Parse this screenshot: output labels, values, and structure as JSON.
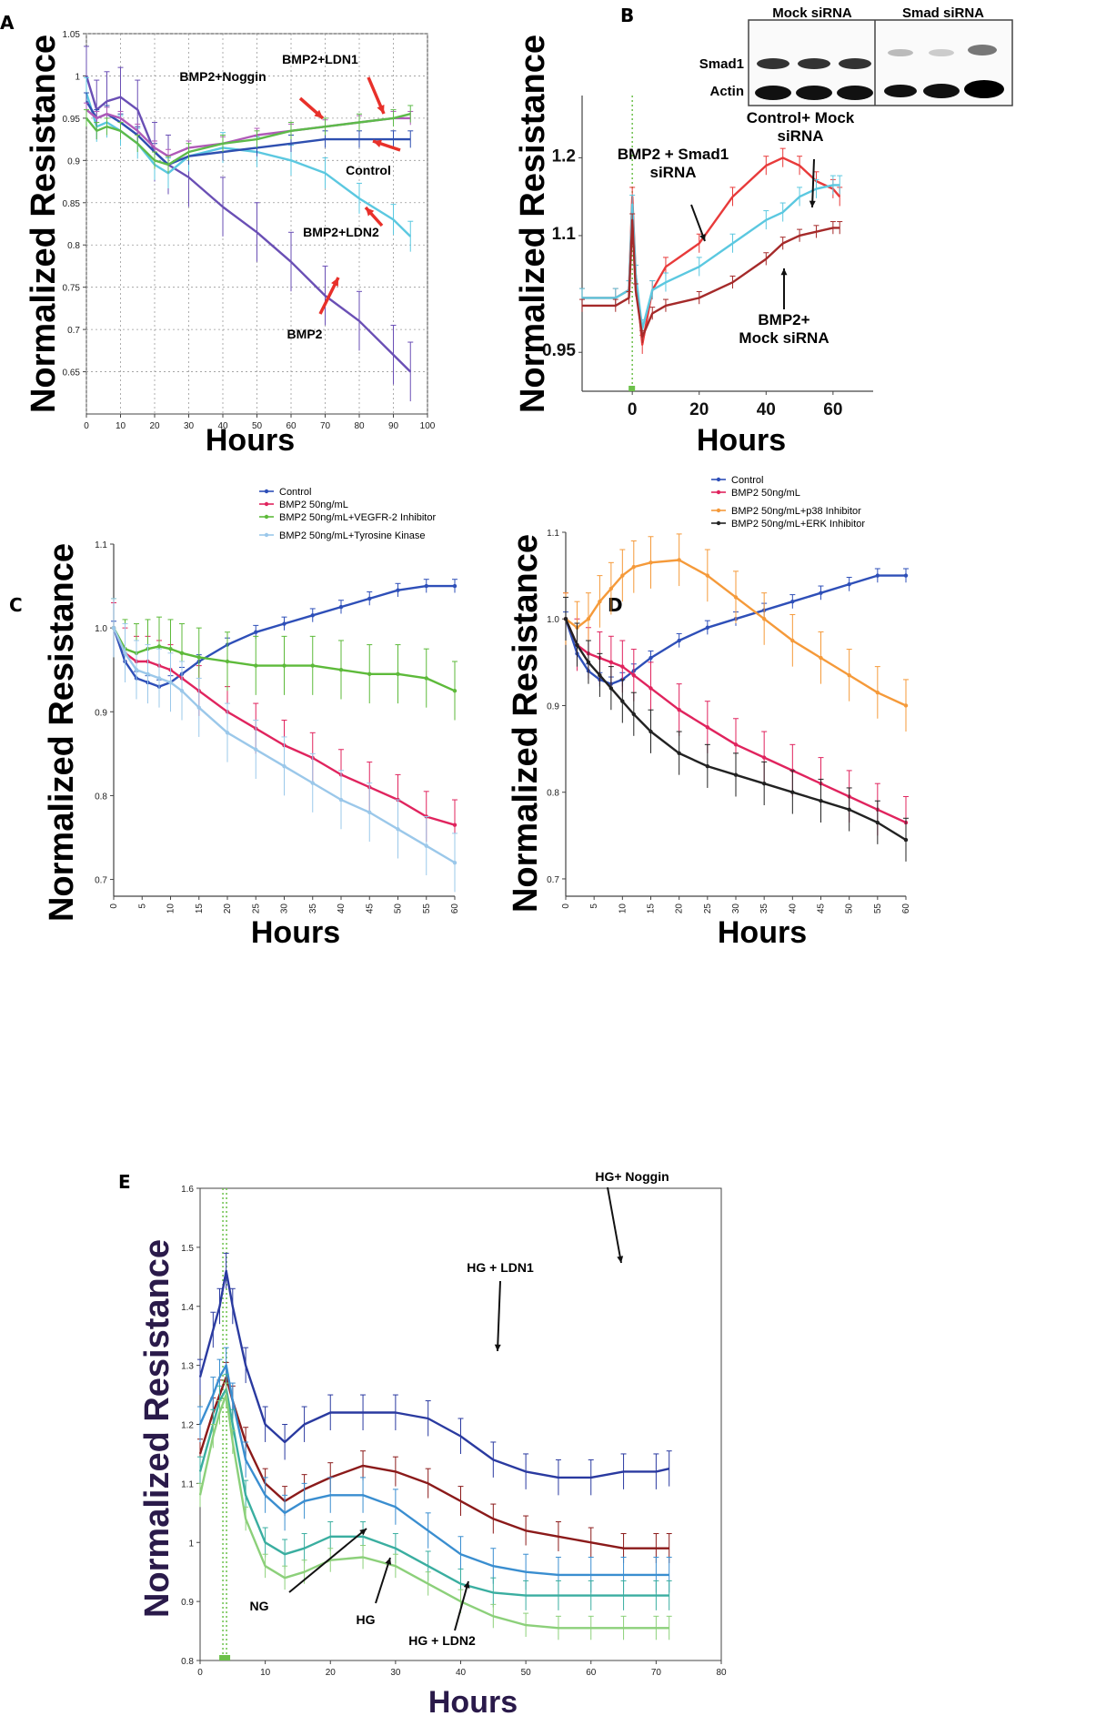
{
  "figure": {
    "panel_letters": [
      "A",
      "B",
      "C",
      "D",
      "E"
    ],
    "blot": {
      "mock_label": "Mock siRNA",
      "smad_label": "Smad siRNA",
      "row1_label": "Smad1",
      "row2_label": "Actin"
    }
  },
  "chart_data": [
    {
      "panel": "A",
      "type": "line",
      "xlabel": "Hours",
      "ylabel": "Normalized Resistance",
      "xlim": [
        0,
        100
      ],
      "ylim": [
        0.6,
        1.05
      ],
      "xticks": [
        0,
        10,
        20,
        30,
        40,
        50,
        60,
        70,
        80,
        90,
        100
      ],
      "yticks": [
        0.65,
        0.7,
        0.75,
        0.8,
        0.85,
        0.9,
        0.95,
        1,
        1.05
      ],
      "ytick_labels": [
        "0.65",
        "0.7",
        "0.75",
        "0.8",
        "0.85",
        "0.9",
        "0.95",
        "1",
        "1.05"
      ],
      "grid": true,
      "series": [
        {
          "name": "BMP2",
          "color": "#6a4fb5",
          "err": 0.035,
          "x": [
            0,
            3,
            6,
            10,
            15,
            20,
            24,
            30,
            40,
            50,
            60,
            70,
            80,
            90,
            95
          ],
          "y": [
            1.0,
            0.96,
            0.97,
            0.975,
            0.96,
            0.91,
            0.895,
            0.88,
            0.845,
            0.815,
            0.78,
            0.74,
            0.71,
            0.67,
            0.65
          ]
        },
        {
          "name": "BMP2+LDN2",
          "color": "#5bc8e0",
          "err": 0.018,
          "x": [
            0,
            3,
            6,
            10,
            15,
            20,
            24,
            30,
            40,
            50,
            60,
            70,
            80,
            90,
            95
          ],
          "y": [
            0.98,
            0.94,
            0.945,
            0.935,
            0.92,
            0.895,
            0.885,
            0.905,
            0.915,
            0.91,
            0.9,
            0.885,
            0.855,
            0.83,
            0.81
          ]
        },
        {
          "name": "Control",
          "color": "#2e4fb0",
          "err": 0.01,
          "x": [
            0,
            3,
            6,
            10,
            15,
            20,
            24,
            30,
            40,
            50,
            60,
            70,
            80,
            90,
            95
          ],
          "y": [
            0.97,
            0.95,
            0.955,
            0.945,
            0.93,
            0.91,
            0.895,
            0.905,
            0.91,
            0.915,
            0.92,
            0.925,
            0.925,
            0.925,
            0.925
          ]
        },
        {
          "name": "BMP2+Noggin",
          "color": "#b05ab8",
          "err": 0.008,
          "x": [
            0,
            3,
            6,
            10,
            15,
            20,
            24,
            30,
            40,
            50,
            60,
            70,
            80,
            90,
            95
          ],
          "y": [
            0.96,
            0.95,
            0.955,
            0.95,
            0.935,
            0.915,
            0.905,
            0.915,
            0.92,
            0.93,
            0.935,
            0.94,
            0.945,
            0.95,
            0.95
          ]
        },
        {
          "name": "BMP2+LDN1",
          "color": "#5dba4a",
          "err": 0.01,
          "x": [
            0,
            3,
            6,
            10,
            15,
            20,
            24,
            30,
            40,
            50,
            60,
            70,
            80,
            90,
            95
          ],
          "y": [
            0.95,
            0.935,
            0.94,
            0.935,
            0.92,
            0.9,
            0.895,
            0.91,
            0.92,
            0.925,
            0.935,
            0.94,
            0.945,
            0.95,
            0.955
          ]
        }
      ],
      "annotations": [
        "BMP2+Noggin",
        "BMP2+LDN1",
        "Control",
        "BMP2+LDN2",
        "BMP2"
      ]
    },
    {
      "panel": "B",
      "type": "line",
      "xlabel": "Hours",
      "ylabel": "Normalized Resistance",
      "xlim": [
        -15,
        72
      ],
      "ylim": [
        0.9,
        1.28
      ],
      "xticks": [
        0,
        20,
        40,
        60
      ],
      "yticks": [
        0.95,
        1.1,
        1.2
      ],
      "ytick_labels": [
        "0.95",
        "1.1",
        "1.2"
      ],
      "series": [
        {
          "name": "BMP2 + Smad1 siRNA",
          "color": "#e83a3a",
          "err": 0.012,
          "x": [
            -15,
            -5,
            -1,
            0,
            1,
            3,
            6,
            10,
            20,
            30,
            40,
            45,
            50,
            55,
            60,
            62
          ],
          "y": [
            1.02,
            1.02,
            1.03,
            1.15,
            1.05,
            0.96,
            1.03,
            1.06,
            1.09,
            1.15,
            1.19,
            1.2,
            1.19,
            1.17,
            1.16,
            1.15
          ]
        },
        {
          "name": "Control+ Mock siRNA",
          "color": "#5bc8e0",
          "err": 0.012,
          "x": [
            -15,
            -5,
            -1,
            0,
            1,
            3,
            6,
            10,
            20,
            30,
            40,
            45,
            50,
            55,
            60,
            62
          ],
          "y": [
            1.02,
            1.02,
            1.03,
            1.14,
            1.05,
            0.98,
            1.03,
            1.04,
            1.06,
            1.09,
            1.12,
            1.13,
            1.15,
            1.16,
            1.165,
            1.165
          ]
        },
        {
          "name": "BMP2+ Mock siRNA",
          "color": "#a52a2a",
          "err": 0.008,
          "x": [
            -15,
            -5,
            -1,
            0,
            1,
            3,
            6,
            10,
            20,
            30,
            40,
            45,
            50,
            55,
            60,
            62
          ],
          "y": [
            1.01,
            1.01,
            1.02,
            1.12,
            1.03,
            0.97,
            1.0,
            1.01,
            1.02,
            1.04,
            1.07,
            1.09,
            1.1,
            1.105,
            1.11,
            1.11
          ]
        }
      ],
      "annotations": [
        "BMP2 + Smad1 siRNA",
        "Control+ Mock siRNA",
        "BMP2+ Mock siRNA"
      ]
    },
    {
      "panel": "C",
      "type": "line",
      "xlabel": "Hours",
      "ylabel": "Normalized Resistance",
      "xlim": [
        0,
        60
      ],
      "ylim": [
        0.68,
        1.1
      ],
      "xticks": [
        0,
        5,
        10,
        15,
        20,
        25,
        30,
        35,
        40,
        45,
        50,
        55,
        60
      ],
      "yticks": [
        0.7,
        0.8,
        0.9,
        1.0,
        1.1
      ],
      "ytick_labels": [
        "0.7",
        "0.8",
        "0.9",
        "1.0",
        "1.1"
      ],
      "series": [
        {
          "name": "Control",
          "color": "#2e4fb8",
          "err": 0.008,
          "x": [
            0,
            2,
            4,
            6,
            8,
            10,
            12,
            15,
            20,
            25,
            30,
            35,
            40,
            45,
            50,
            55,
            60
          ],
          "y": [
            1.0,
            0.96,
            0.94,
            0.935,
            0.93,
            0.935,
            0.945,
            0.96,
            0.98,
            0.995,
            1.005,
            1.015,
            1.025,
            1.035,
            1.045,
            1.05,
            1.05
          ]
        },
        {
          "name": "BMP2 50ng/mL",
          "color": "#e0245e",
          "err": 0.03,
          "x": [
            0,
            2,
            4,
            6,
            8,
            10,
            12,
            15,
            20,
            25,
            30,
            35,
            40,
            45,
            50,
            55,
            60
          ],
          "y": [
            1.0,
            0.97,
            0.96,
            0.96,
            0.955,
            0.95,
            0.94,
            0.925,
            0.9,
            0.88,
            0.86,
            0.845,
            0.825,
            0.81,
            0.795,
            0.775,
            0.765
          ]
        },
        {
          "name": "BMP2 50ng/mL+VEGFR-2 Inhibitor",
          "color": "#5dba3a",
          "err": 0.035,
          "x": [
            0,
            2,
            4,
            6,
            8,
            10,
            12,
            15,
            20,
            25,
            30,
            35,
            40,
            45,
            50,
            55,
            60
          ],
          "y": [
            1.0,
            0.975,
            0.97,
            0.975,
            0.978,
            0.975,
            0.97,
            0.965,
            0.96,
            0.955,
            0.955,
            0.955,
            0.95,
            0.945,
            0.945,
            0.94,
            0.925
          ]
        },
        {
          "name": "BMP2 50ng/mL+Tyrosine Kinase",
          "color": "#9bc8ea",
          "err": 0.035,
          "x": [
            0,
            2,
            4,
            6,
            8,
            10,
            12,
            15,
            20,
            25,
            30,
            35,
            40,
            45,
            50,
            55,
            60
          ],
          "y": [
            1.0,
            0.97,
            0.95,
            0.945,
            0.94,
            0.935,
            0.925,
            0.905,
            0.875,
            0.855,
            0.835,
            0.815,
            0.795,
            0.78,
            0.76,
            0.74,
            0.72
          ]
        }
      ],
      "legend": [
        "Control",
        "BMP2 50ng/mL",
        "BMP2 50ng/mL+VEGFR-2 Inhibitor",
        "BMP2 50ng/mL+Tyrosine Kinase"
      ]
    },
    {
      "panel": "D",
      "type": "line",
      "xlabel": "Hours",
      "ylabel": "Normalized Resistance",
      "xlim": [
        0,
        60
      ],
      "ylim": [
        0.68,
        1.1
      ],
      "xticks": [
        0,
        5,
        10,
        15,
        20,
        25,
        30,
        35,
        40,
        45,
        50,
        55,
        60
      ],
      "yticks": [
        0.7,
        0.8,
        0.9,
        1.0,
        1.1
      ],
      "ytick_labels": [
        "0.7",
        "0.8",
        "0.9",
        "1.0",
        "1.1"
      ],
      "series": [
        {
          "name": "Control",
          "color": "#2e4fb8",
          "err": 0.008,
          "x": [
            0,
            2,
            4,
            6,
            8,
            10,
            12,
            15,
            20,
            25,
            30,
            35,
            40,
            45,
            50,
            55,
            60
          ],
          "y": [
            1.0,
            0.96,
            0.94,
            0.93,
            0.925,
            0.93,
            0.94,
            0.955,
            0.975,
            0.99,
            1.0,
            1.01,
            1.02,
            1.03,
            1.04,
            1.05,
            1.05
          ]
        },
        {
          "name": "BMP2 50ng/mL",
          "color": "#e0245e",
          "err": 0.03,
          "x": [
            0,
            2,
            4,
            6,
            8,
            10,
            12,
            15,
            20,
            25,
            30,
            35,
            40,
            45,
            50,
            55,
            60
          ],
          "y": [
            1.0,
            0.97,
            0.96,
            0.955,
            0.95,
            0.945,
            0.935,
            0.92,
            0.895,
            0.875,
            0.855,
            0.84,
            0.825,
            0.81,
            0.795,
            0.78,
            0.765
          ]
        },
        {
          "name": "BMP2 50ng/mL+p38 Inhibitor",
          "color": "#f59a3a",
          "err": 0.03,
          "x": [
            0,
            2,
            4,
            6,
            8,
            10,
            12,
            15,
            20,
            25,
            30,
            35,
            40,
            45,
            50,
            55,
            60
          ],
          "y": [
            1.0,
            0.99,
            1.0,
            1.02,
            1.035,
            1.05,
            1.06,
            1.065,
            1.068,
            1.05,
            1.025,
            1.0,
            0.975,
            0.955,
            0.935,
            0.915,
            0.9
          ]
        },
        {
          "name": "BMP2 50ng/mL+ERK Inhibitor",
          "color": "#222222",
          "err": 0.025,
          "x": [
            0,
            2,
            4,
            6,
            8,
            10,
            12,
            15,
            20,
            25,
            30,
            35,
            40,
            45,
            50,
            55,
            60
          ],
          "y": [
            1.0,
            0.97,
            0.95,
            0.935,
            0.92,
            0.905,
            0.89,
            0.87,
            0.845,
            0.83,
            0.82,
            0.81,
            0.8,
            0.79,
            0.78,
            0.765,
            0.745
          ]
        }
      ],
      "legend": [
        "Control",
        "BMP2 50ng/mL",
        "BMP2 50ng/mL+p38 Inhibitor",
        "BMP2 50ng/mL+ERK Inhibitor"
      ]
    },
    {
      "panel": "E",
      "type": "line",
      "xlabel": "Hours",
      "ylabel": "Normalized Resistance",
      "xlim": [
        0,
        80
      ],
      "ylim": [
        0.8,
        1.6
      ],
      "xticks": [
        0,
        10,
        20,
        30,
        40,
        50,
        60,
        70,
        80
      ],
      "yticks": [
        0.8,
        0.9,
        1,
        1.1,
        1.2,
        1.3,
        1.4,
        1.5,
        1.6
      ],
      "ytick_labels": [
        "0.8",
        "0.9",
        "1",
        "1.1",
        "1.2",
        "1.3",
        "1.4",
        "1.5",
        "1.6"
      ],
      "series": [
        {
          "name": "HG + LDN1",
          "color": "#2a3aa0",
          "err": 0.03,
          "x": [
            0,
            2,
            3,
            4,
            5,
            7,
            10,
            13,
            16,
            20,
            25,
            30,
            35,
            40,
            45,
            50,
            55,
            60,
            65,
            70,
            72
          ],
          "y": [
            1.28,
            1.36,
            1.4,
            1.46,
            1.4,
            1.3,
            1.2,
            1.17,
            1.2,
            1.22,
            1.22,
            1.22,
            1.21,
            1.18,
            1.14,
            1.12,
            1.11,
            1.11,
            1.12,
            1.12,
            1.125
          ]
        },
        {
          "name": "HG+ Noggin",
          "color": "#8b1a1a",
          "err": 0.025,
          "x": [
            0,
            2,
            3,
            4,
            5,
            7,
            10,
            13,
            16,
            20,
            25,
            30,
            35,
            40,
            45,
            50,
            55,
            60,
            65,
            70,
            72
          ],
          "y": [
            1.15,
            1.22,
            1.25,
            1.28,
            1.24,
            1.17,
            1.1,
            1.07,
            1.09,
            1.11,
            1.13,
            1.12,
            1.1,
            1.07,
            1.04,
            1.02,
            1.01,
            1.0,
            0.99,
            0.99,
            0.99
          ]
        },
        {
          "name": "NG",
          "color": "#3a8ed0",
          "err": 0.03,
          "x": [
            0,
            2,
            3,
            4,
            5,
            7,
            10,
            13,
            16,
            20,
            25,
            30,
            35,
            40,
            45,
            50,
            55,
            60,
            65,
            70,
            72
          ],
          "y": [
            1.2,
            1.25,
            1.28,
            1.3,
            1.24,
            1.14,
            1.08,
            1.05,
            1.07,
            1.08,
            1.08,
            1.06,
            1.02,
            0.98,
            0.96,
            0.95,
            0.945,
            0.945,
            0.945,
            0.945,
            0.945
          ]
        },
        {
          "name": "HG",
          "color": "#3aaea0",
          "err": 0.025,
          "x": [
            0,
            2,
            3,
            4,
            5,
            7,
            10,
            13,
            16,
            20,
            25,
            30,
            35,
            40,
            45,
            50,
            55,
            60,
            65,
            70,
            72
          ],
          "y": [
            1.12,
            1.2,
            1.24,
            1.26,
            1.2,
            1.08,
            1.0,
            0.98,
            0.99,
            1.01,
            1.01,
            0.99,
            0.96,
            0.93,
            0.915,
            0.91,
            0.91,
            0.91,
            0.91,
            0.91,
            0.91
          ]
        },
        {
          "name": "HG + LDN2",
          "color": "#8cd07a",
          "err": 0.02,
          "x": [
            0,
            2,
            3,
            4,
            5,
            7,
            10,
            13,
            16,
            20,
            25,
            30,
            35,
            40,
            45,
            50,
            55,
            60,
            65,
            70,
            72
          ],
          "y": [
            1.08,
            1.18,
            1.22,
            1.25,
            1.17,
            1.04,
            0.96,
            0.94,
            0.95,
            0.97,
            0.975,
            0.96,
            0.93,
            0.9,
            0.875,
            0.86,
            0.855,
            0.855,
            0.855,
            0.855,
            0.855
          ]
        }
      ],
      "annotations": [
        "HG + LDN1",
        "HG+ Noggin",
        "NG",
        "HG",
        "HG + LDN2"
      ]
    }
  ]
}
